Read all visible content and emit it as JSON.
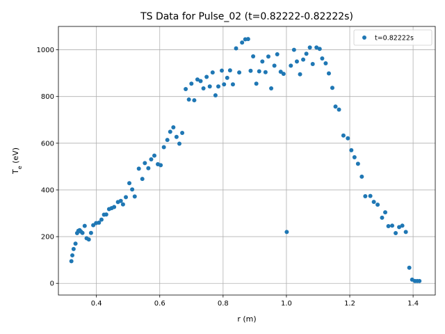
{
  "chart_data": {
    "type": "scatter",
    "title": "TS Data for Pulse_02 (t=0.82222-0.82222s)",
    "xlabel": "r (m)",
    "ylabel": "T_e (eV)",
    "xlim": [
      0.28,
      1.47
    ],
    "ylim": [
      -50,
      1100
    ],
    "xticks": [
      0.4,
      0.6,
      0.8,
      1.0,
      1.2,
      1.4
    ],
    "xtick_labels": [
      "0.4",
      "0.6",
      "0.8",
      "1.0",
      "1.2",
      "1.4"
    ],
    "yticks": [
      0,
      200,
      400,
      600,
      800,
      1000
    ],
    "ytick_labels": [
      "0",
      "200",
      "400",
      "600",
      "800",
      "1000"
    ],
    "grid": true,
    "legend_position": "top-right",
    "marker_color": "#1f77b4",
    "series": [
      {
        "name": "t=0.82222s",
        "points": [
          [
            0.321,
            95
          ],
          [
            0.324,
            120
          ],
          [
            0.328,
            147
          ],
          [
            0.334,
            170
          ],
          [
            0.339,
            215
          ],
          [
            0.343,
            225
          ],
          [
            0.347,
            228
          ],
          [
            0.351,
            222
          ],
          [
            0.356,
            216
          ],
          [
            0.363,
            246
          ],
          [
            0.369,
            193
          ],
          [
            0.376,
            188
          ],
          [
            0.383,
            216
          ],
          [
            0.39,
            249
          ],
          [
            0.399,
            258
          ],
          [
            0.408,
            260
          ],
          [
            0.416,
            273
          ],
          [
            0.424,
            294
          ],
          [
            0.431,
            295
          ],
          [
            0.44,
            318
          ],
          [
            0.448,
            322
          ],
          [
            0.456,
            327
          ],
          [
            0.468,
            348
          ],
          [
            0.477,
            353
          ],
          [
            0.484,
            338
          ],
          [
            0.493,
            369
          ],
          [
            0.504,
            429
          ],
          [
            0.513,
            402
          ],
          [
            0.521,
            372
          ],
          [
            0.534,
            491
          ],
          [
            0.545,
            447
          ],
          [
            0.553,
            515
          ],
          [
            0.564,
            493
          ],
          [
            0.573,
            531
          ],
          [
            0.583,
            547
          ],
          [
            0.594,
            510
          ],
          [
            0.603,
            506
          ],
          [
            0.613,
            583
          ],
          [
            0.624,
            614
          ],
          [
            0.633,
            649
          ],
          [
            0.643,
            668
          ],
          [
            0.653,
            627
          ],
          [
            0.662,
            598
          ],
          [
            0.671,
            644
          ],
          [
            0.682,
            832
          ],
          [
            0.692,
            787
          ],
          [
            0.7,
            855
          ],
          [
            0.709,
            784
          ],
          [
            0.719,
            873
          ],
          [
            0.729,
            866
          ],
          [
            0.738,
            835
          ],
          [
            0.748,
            884
          ],
          [
            0.758,
            843
          ],
          [
            0.767,
            903
          ],
          [
            0.776,
            805
          ],
          [
            0.785,
            843
          ],
          [
            0.796,
            911
          ],
          [
            0.803,
            852
          ],
          [
            0.813,
            880
          ],
          [
            0.822,
            912
          ],
          [
            0.831,
            852
          ],
          [
            0.841,
            1006
          ],
          [
            0.851,
            903
          ],
          [
            0.86,
            1031
          ],
          [
            0.87,
            1045
          ],
          [
            0.879,
            1046
          ],
          [
            0.887,
            910
          ],
          [
            0.895,
            972
          ],
          [
            0.905,
            855
          ],
          [
            0.914,
            908
          ],
          [
            0.924,
            950
          ],
          [
            0.934,
            904
          ],
          [
            0.943,
            971
          ],
          [
            0.952,
            835
          ],
          [
            0.962,
            932
          ],
          [
            0.971,
            981
          ],
          [
            0.982,
            906
          ],
          [
            0.991,
            897
          ],
          [
            1.001,
            220
          ],
          [
            1.014,
            932
          ],
          [
            1.024,
            1000
          ],
          [
            1.033,
            950
          ],
          [
            1.043,
            895
          ],
          [
            1.053,
            958
          ],
          [
            1.063,
            983
          ],
          [
            1.074,
            1010
          ],
          [
            1.083,
            939
          ],
          [
            1.095,
            1010
          ],
          [
            1.105,
            1004
          ],
          [
            1.113,
            963
          ],
          [
            1.124,
            942
          ],
          [
            1.134,
            899
          ],
          [
            1.145,
            837
          ],
          [
            1.155,
            757
          ],
          [
            1.166,
            744
          ],
          [
            1.18,
            633
          ],
          [
            1.194,
            621
          ],
          [
            1.205,
            570
          ],
          [
            1.215,
            540
          ],
          [
            1.226,
            512
          ],
          [
            1.238,
            457
          ],
          [
            1.249,
            373
          ],
          [
            1.265,
            374
          ],
          [
            1.276,
            349
          ],
          [
            1.288,
            337
          ],
          [
            1.302,
            281
          ],
          [
            1.312,
            304
          ],
          [
            1.322,
            245
          ],
          [
            1.334,
            247
          ],
          [
            1.345,
            215
          ],
          [
            1.356,
            241
          ],
          [
            1.366,
            247
          ],
          [
            1.377,
            220
          ],
          [
            1.388,
            67
          ],
          [
            1.397,
            16
          ],
          [
            1.406,
            10
          ],
          [
            1.413,
            10
          ],
          [
            1.42,
            10
          ]
        ]
      }
    ]
  }
}
